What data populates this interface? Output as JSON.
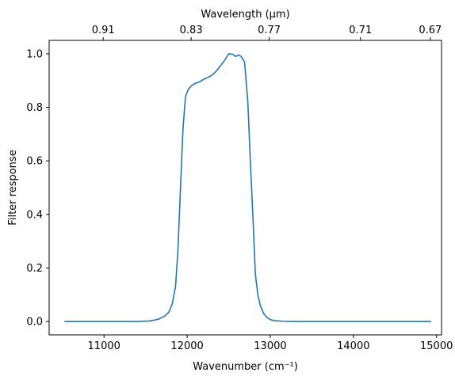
{
  "chart_data": {
    "type": "line",
    "xlabel": "Wavenumber (cm⁻¹)",
    "ylabel": "Filter response",
    "top_xlabel": "Wavelength (μm)",
    "xlim": [
      10340,
      15060
    ],
    "ylim": [
      -0.05,
      1.05
    ],
    "x_ticks": [
      11000,
      12000,
      13000,
      14000,
      15000
    ],
    "x_tick_labels": [
      "11000",
      "12000",
      "13000",
      "14000",
      "15000"
    ],
    "y_ticks": [
      0.0,
      0.2,
      0.4,
      0.6,
      0.8,
      1.0
    ],
    "y_tick_labels": [
      "0.0",
      "0.2",
      "0.4",
      "0.6",
      "0.8",
      "1.0"
    ],
    "top_ticks": [
      {
        "label": "0.91",
        "x": 10990
      },
      {
        "label": "0.83",
        "x": 12048
      },
      {
        "label": "0.77",
        "x": 12987
      },
      {
        "label": "0.71",
        "x": 14085
      },
      {
        "label": "0.67",
        "x": 14925
      }
    ],
    "grid": false,
    "series": [
      {
        "color": "#1f77b4",
        "x": [
          10530,
          11000,
          11400,
          11550,
          11650,
          11730,
          11780,
          11820,
          11860,
          11890,
          11920,
          11950,
          11980,
          12010,
          12050,
          12100,
          12150,
          12200,
          12240,
          12270,
          12300,
          12350,
          12400,
          12450,
          12500,
          12550,
          12580,
          12620,
          12650,
          12690,
          12730,
          12760,
          12790,
          12820,
          12850,
          12880,
          12920,
          12960,
          13000,
          13050,
          13150,
          13300,
          13600,
          14000,
          14500,
          14930
        ],
        "y": [
          0.0,
          0.0,
          0.0,
          0.002,
          0.008,
          0.02,
          0.035,
          0.065,
          0.13,
          0.27,
          0.5,
          0.72,
          0.84,
          0.865,
          0.88,
          0.89,
          0.895,
          0.905,
          0.91,
          0.915,
          0.92,
          0.935,
          0.955,
          0.975,
          1.0,
          0.998,
          0.99,
          0.995,
          0.99,
          0.97,
          0.82,
          0.6,
          0.4,
          0.18,
          0.1,
          0.06,
          0.03,
          0.015,
          0.007,
          0.003,
          0.001,
          0.0,
          0.0,
          0.0,
          0.0,
          0.0
        ]
      }
    ]
  }
}
